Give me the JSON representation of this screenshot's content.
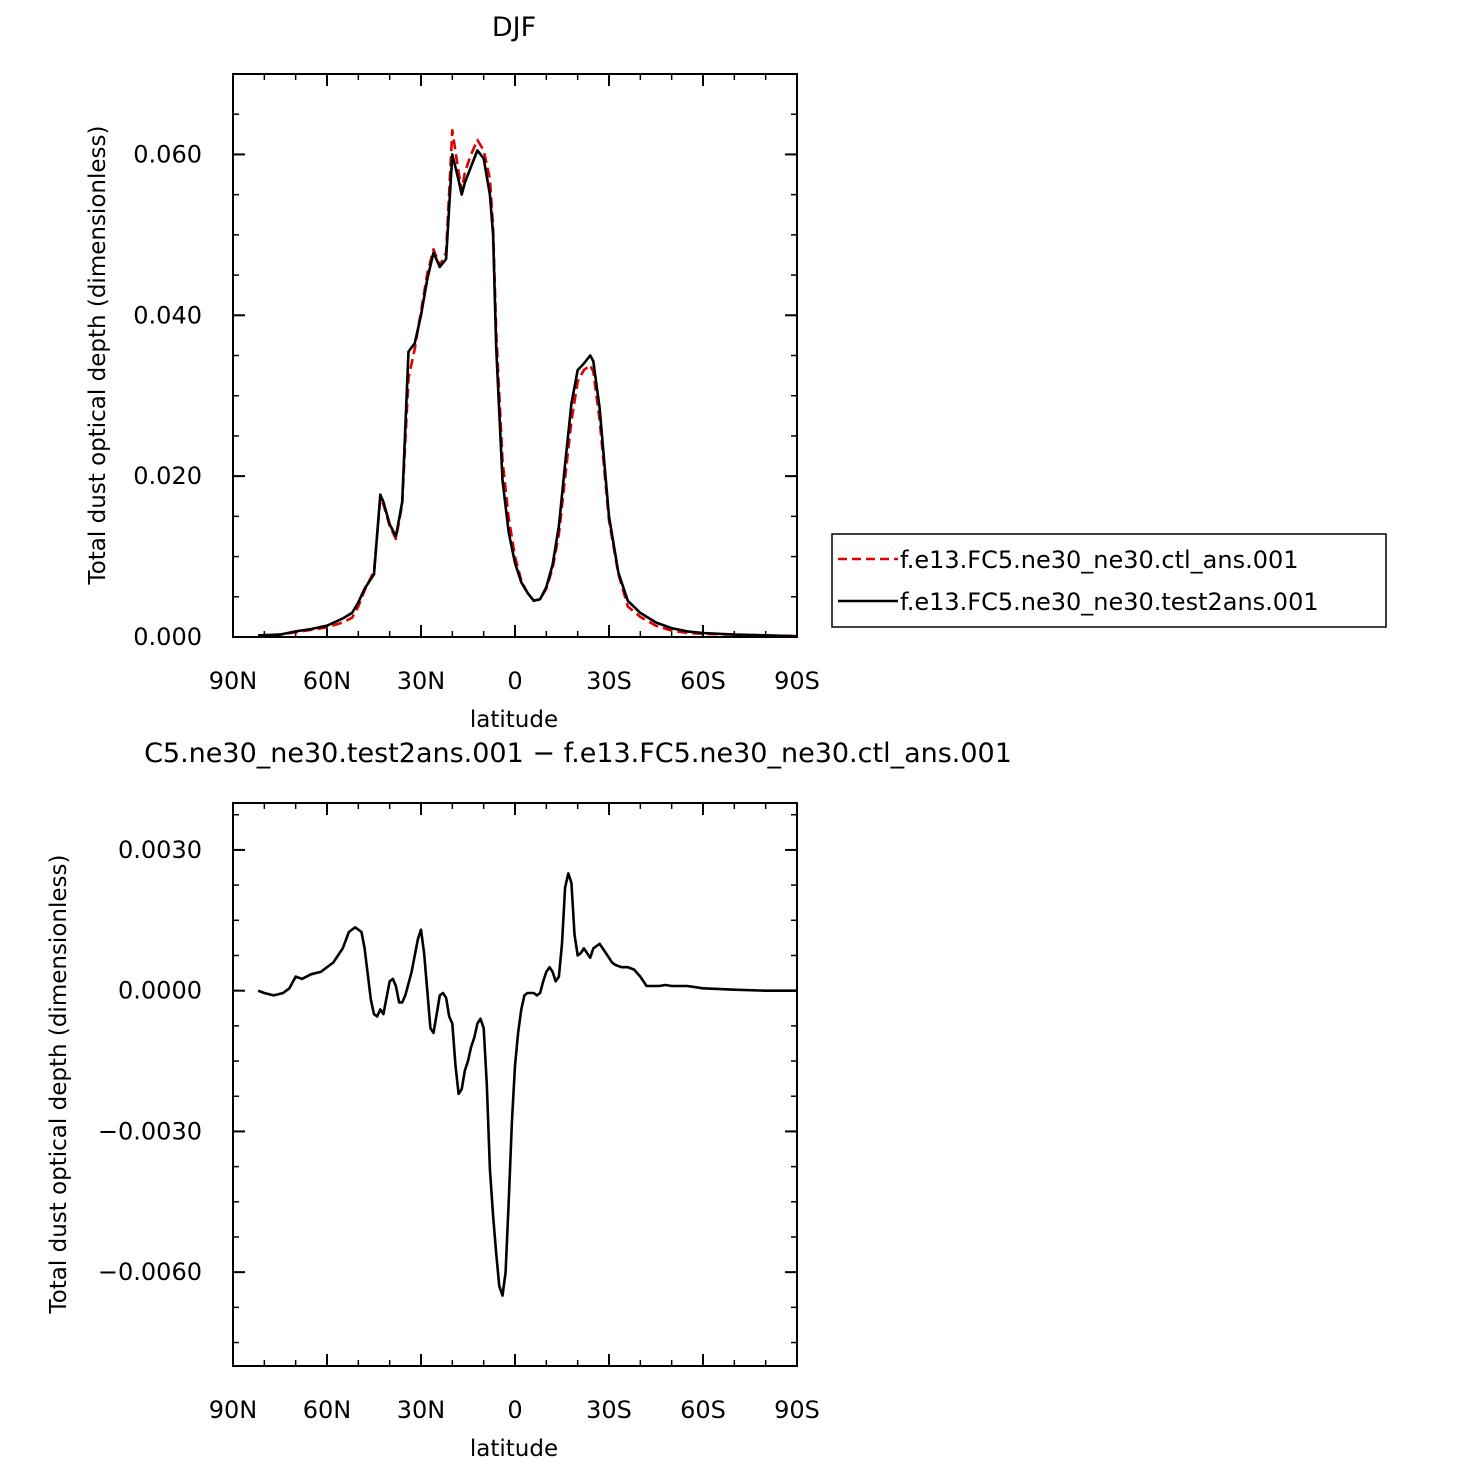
{
  "colors": {
    "ctl": "#e00000",
    "test": "#000000"
  },
  "chart_data": [
    {
      "type": "line",
      "title": "DJF",
      "xlabel": "latitude",
      "ylabel": "Total dust optical depth (dimensionless)",
      "xlim": [
        90,
        -90
      ],
      "ylim": [
        0,
        0.07
      ],
      "xtick_values": [
        90,
        60,
        30,
        0,
        -30,
        -60,
        -90
      ],
      "xtick_labels": [
        "90N",
        "60N",
        "30N",
        "0",
        "30S",
        "60S",
        "90S"
      ],
      "ytick_values": [
        0,
        0.02,
        0.04,
        0.06
      ],
      "ytick_labels": [
        "0.000",
        "0.020",
        "0.040",
        "0.060"
      ],
      "legend_position": "right",
      "series": [
        {
          "name": "f.e13.FC5.ne30_ne30.ctl_ans.001",
          "style": "dashed",
          "color": "#e00000",
          "x": [
            82,
            75,
            70,
            65,
            60,
            55,
            52,
            50,
            48,
            45,
            43,
            42,
            40,
            38,
            36,
            34,
            32,
            30,
            28,
            26,
            24,
            22,
            20,
            18,
            17,
            16,
            14,
            12,
            10,
            8,
            7,
            6,
            4,
            2,
            0,
            -2,
            -4,
            -6,
            -8,
            -10,
            -12,
            -14,
            -16,
            -18,
            -20,
            -22,
            -24,
            -25,
            -27,
            -30,
            -33,
            -36,
            -40,
            -45,
            -50,
            -55,
            -60,
            -70,
            -80,
            -90
          ],
          "y": [
            0.0002,
            0.0003,
            0.0006,
            0.0009,
            0.0012,
            0.0018,
            0.0024,
            0.0038,
            0.0058,
            0.0082,
            0.0172,
            0.0165,
            0.0138,
            0.0122,
            0.0165,
            0.0322,
            0.0358,
            0.0405,
            0.0452,
            0.0482,
            0.0462,
            0.0478,
            0.063,
            0.0578,
            0.0555,
            0.0578,
            0.06,
            0.0618,
            0.0605,
            0.057,
            0.051,
            0.038,
            0.022,
            0.0148,
            0.01,
            0.007,
            0.0055,
            0.0045,
            0.0047,
            0.006,
            0.0085,
            0.0128,
            0.0198,
            0.0268,
            0.0318,
            0.0332,
            0.0338,
            0.033,
            0.027,
            0.0145,
            0.0078,
            0.0038,
            0.0025,
            0.0014,
            0.0008,
            0.0005,
            0.0004,
            0.0003,
            0.0002,
            0.0001
          ]
        },
        {
          "name": "f.e13.FC5.ne30_ne30.test2ans.001",
          "style": "solid",
          "color": "#000000",
          "x": [
            82,
            75,
            70,
            65,
            60,
            55,
            52,
            50,
            48,
            45,
            43,
            42,
            40,
            38,
            36,
            34,
            32,
            30,
            28,
            26,
            24,
            22,
            20,
            18,
            17,
            16,
            14,
            12,
            10,
            8,
            7,
            6,
            4,
            2,
            0,
            -2,
            -4,
            -6,
            -8,
            -10,
            -12,
            -14,
            -16,
            -18,
            -20,
            -22,
            -24,
            -25,
            -27,
            -30,
            -33,
            -36,
            -40,
            -45,
            -50,
            -55,
            -60,
            -70,
            -80,
            -90
          ],
          "y": [
            0.0002,
            0.0003,
            0.0007,
            0.001,
            0.0014,
            0.0023,
            0.003,
            0.0043,
            0.006,
            0.0078,
            0.0177,
            0.0168,
            0.014,
            0.0125,
            0.0168,
            0.0355,
            0.0365,
            0.04,
            0.0445,
            0.0478,
            0.046,
            0.047,
            0.06,
            0.0568,
            0.055,
            0.0565,
            0.0585,
            0.0605,
            0.0595,
            0.055,
            0.05,
            0.036,
            0.0195,
            0.013,
            0.0092,
            0.0068,
            0.0055,
            0.0045,
            0.0047,
            0.0062,
            0.009,
            0.0138,
            0.0215,
            0.029,
            0.0332,
            0.034,
            0.035,
            0.0343,
            0.0285,
            0.015,
            0.008,
            0.0045,
            0.003,
            0.0018,
            0.0011,
            0.0007,
            0.0005,
            0.0003,
            0.0002,
            0.0001
          ]
        }
      ]
    },
    {
      "type": "line",
      "title": "C5.ne30_ne30.test2ans.001 − f.e13.FC5.ne30_ne30.ctl_ans.001",
      "xlabel": "latitude",
      "ylabel": "Total dust optical depth (dimensionless)",
      "xlim": [
        90,
        -90
      ],
      "ylim": [
        -0.008,
        0.004
      ],
      "xtick_values": [
        90,
        60,
        30,
        0,
        -30,
        -60,
        -90
      ],
      "xtick_labels": [
        "90N",
        "60N",
        "30N",
        "0",
        "30S",
        "60S",
        "90S"
      ],
      "ytick_values": [
        0.003,
        0,
        -0.003,
        -0.006
      ],
      "ytick_labels": [
        "0.0030",
        "0.0000",
        "−0.0030",
        "−0.0060"
      ],
      "series": [
        {
          "name": "",
          "style": "solid",
          "color": "#000000",
          "x": [
            82,
            80,
            77,
            74,
            72,
            70,
            68,
            65,
            62,
            58,
            55,
            53,
            51,
            49,
            48,
            46,
            45,
            44,
            43,
            42,
            40,
            39,
            38,
            37,
            36,
            35,
            33,
            31,
            30,
            29,
            28,
            27,
            26,
            25,
            24,
            23,
            22,
            21,
            20,
            19,
            18,
            17,
            16,
            15,
            14,
            13,
            12,
            11,
            10,
            9,
            8,
            7,
            6,
            5,
            4,
            3,
            2,
            1,
            0,
            -1,
            -2,
            -3,
            -4,
            -5,
            -6,
            -7,
            -8,
            -9,
            -10,
            -11,
            -12,
            -13,
            -14,
            -15,
            -16,
            -17,
            -18,
            -19,
            -20,
            -21,
            -22,
            -23,
            -24,
            -25,
            -26,
            -27,
            -28,
            -29,
            -30,
            -31,
            -32,
            -34,
            -36,
            -38,
            -40,
            -42,
            -44,
            -46,
            -48,
            -50,
            -55,
            -60,
            -70,
            -80,
            -90
          ],
          "y": [
            0.0,
            -5e-05,
            -0.0001,
            -5e-05,
            5e-05,
            0.0003,
            0.00025,
            0.00035,
            0.0004,
            0.0006,
            0.0009,
            0.00125,
            0.00135,
            0.00125,
            0.0009,
            -0.0002,
            -0.0005,
            -0.00055,
            -0.0004,
            -0.0005,
            0.0002,
            0.00025,
            0.0001,
            -0.00025,
            -0.00025,
            -0.0001,
            0.0004,
            0.0011,
            0.0013,
            0.0008,
            0.0,
            -0.0008,
            -0.0009,
            -0.0005,
            -0.0001,
            -5e-05,
            -0.00015,
            -0.00055,
            -0.0007,
            -0.0016,
            -0.0022,
            -0.0021,
            -0.0017,
            -0.0015,
            -0.0012,
            -0.001,
            -0.0007,
            -0.0006,
            -0.0008,
            -0.002,
            -0.0038,
            -0.0048,
            -0.0056,
            -0.0063,
            -0.0065,
            -0.006,
            -0.0045,
            -0.0028,
            -0.0016,
            -0.0009,
            -0.0004,
            -0.0001,
            -5e-05,
            -5e-05,
            -5e-05,
            -0.0001,
            -5e-05,
            0.0002,
            0.0004,
            0.0005,
            0.0004,
            0.0002,
            0.0003,
            0.001,
            0.0022,
            0.0025,
            0.0023,
            0.0012,
            0.00075,
            0.0008,
            0.0009,
            0.0008,
            0.0007,
            0.0009,
            0.00095,
            0.001,
            0.0009,
            0.0008,
            0.0007,
            0.0006,
            0.00055,
            0.0005,
            0.0005,
            0.00045,
            0.0003,
            0.0001,
            0.0001,
            0.0001,
            0.00012,
            0.0001,
            0.0001,
            5e-05,
            2e-05,
            0.0,
            0.0
          ]
        }
      ]
    }
  ]
}
